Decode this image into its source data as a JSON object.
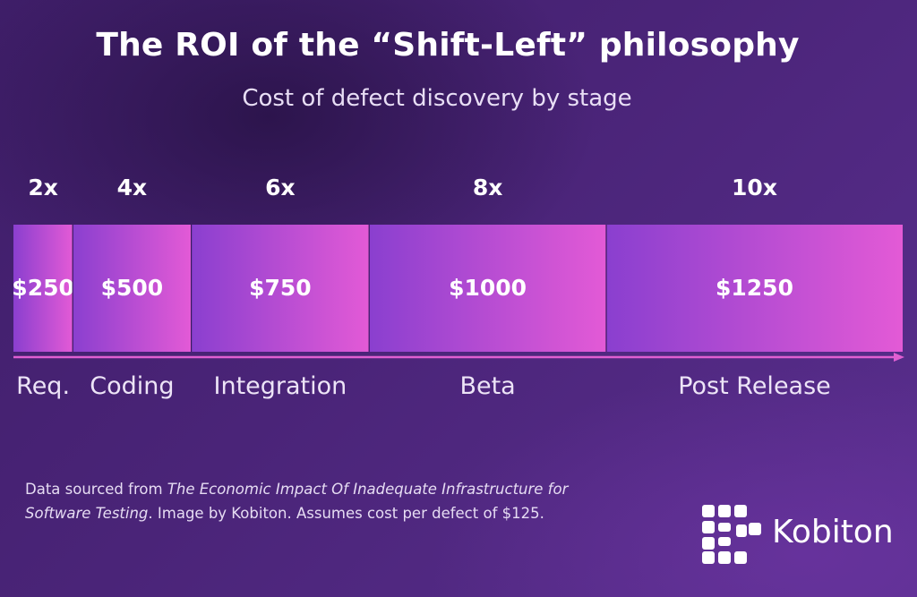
{
  "title": "The ROI of the “Shift-Left” philosophy",
  "subtitle": "Cost of defect discovery by stage",
  "chart_data": {
    "type": "bar",
    "orientation": "horizontal-stacked-segments",
    "categories": [
      "Req.",
      "Coding",
      "Integration",
      "Beta",
      "Post Release"
    ],
    "multipliers": [
      "2x",
      "4x",
      "6x",
      "8x",
      "10x"
    ],
    "values": [
      250,
      500,
      750,
      1000,
      1250
    ],
    "value_labels": [
      "$250",
      "$500",
      "$750",
      "$1000",
      "$1250"
    ],
    "grid": false,
    "legend": "none",
    "colors": {
      "segment_start": "#8a3fcf",
      "segment_end": "#e35ad6",
      "arrow": "#e05fd2"
    }
  },
  "footnote": {
    "prefix": "Data sourced from ",
    "source_title": "The Economic Impact Of Inadequate Infrastructure for Software Testing",
    "suffix": ". Image by Kobiton. Assumes cost per defect of $125."
  },
  "brand": {
    "name": "Kobiton",
    "logo_icon": "kobiton-logo-icon"
  }
}
